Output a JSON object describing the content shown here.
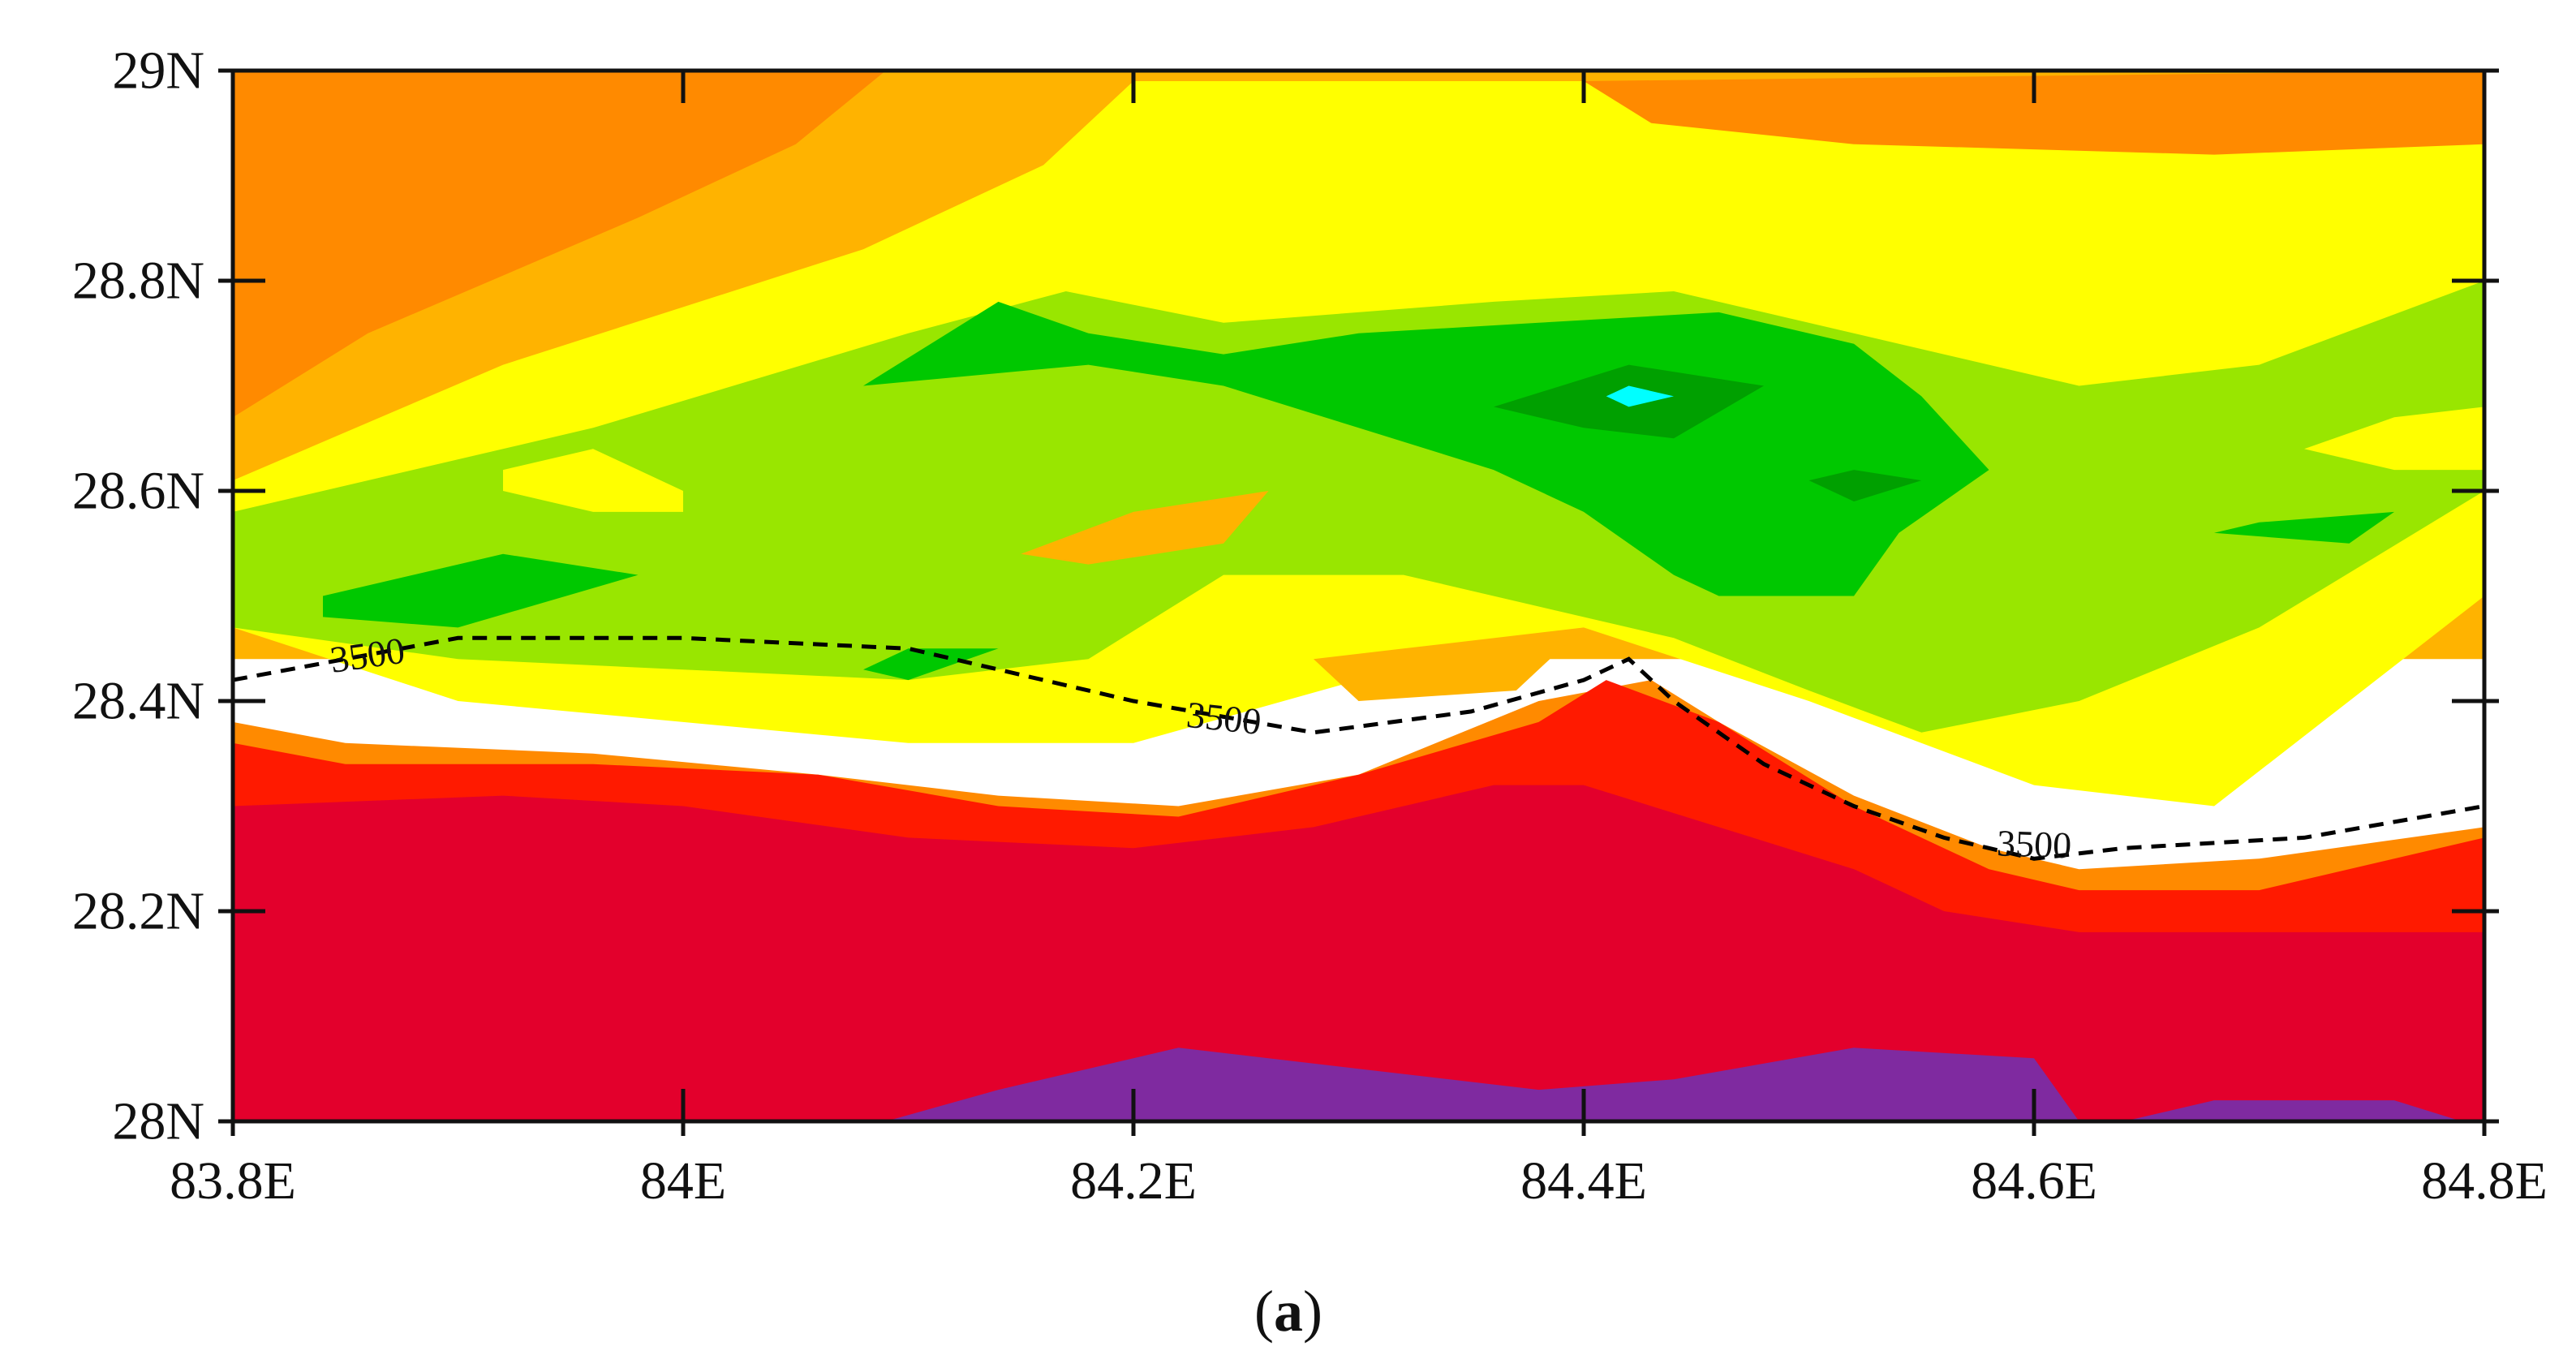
{
  "chart_data": {
    "type": "filled-contour-map",
    "title": "",
    "xlabel": "",
    "ylabel": "",
    "caption": {
      "open": "(",
      "letter": "a",
      "close": ")"
    },
    "xlim": [
      83.8,
      84.8
    ],
    "ylim": [
      28.0,
      29.0
    ],
    "grid": false,
    "x_ticks": [
      {
        "value": 83.8,
        "label": "83.8E"
      },
      {
        "value": 84.0,
        "label": "84E"
      },
      {
        "value": 84.2,
        "label": "84.2E"
      },
      {
        "value": 84.4,
        "label": "84.4E"
      },
      {
        "value": 84.6,
        "label": "84.6E"
      },
      {
        "value": 84.8,
        "label": "84.8E"
      }
    ],
    "y_ticks": [
      {
        "value": 28.0,
        "label": "28N"
      },
      {
        "value": 28.2,
        "label": "28.2N"
      },
      {
        "value": 28.4,
        "label": "28.4N"
      },
      {
        "value": 28.6,
        "label": "28.6N"
      },
      {
        "value": 28.8,
        "label": "28.8N"
      },
      {
        "value": 29.0,
        "label": "29N"
      }
    ],
    "colors": {
      "orange": "#ff8a00",
      "light_orange": "#ffb300",
      "yellow": "#ffff00",
      "light_green": "#99e600",
      "green": "#00c800",
      "dark_green": "#00a000",
      "cyan": "#00ffff",
      "red": "#ff1a00",
      "crimson": "#e3002c",
      "purple": "#7f2aa0"
    },
    "regions": [
      {
        "level": "light_orange",
        "points": [
          [
            83.8,
            28.44
          ],
          [
            83.8,
            29.0
          ],
          [
            84.8,
            29.0
          ],
          [
            84.8,
            28.44
          ]
        ]
      },
      {
        "level": "yellow",
        "points": [
          [
            83.8,
            28.61
          ],
          [
            83.92,
            28.72
          ],
          [
            84.08,
            28.83
          ],
          [
            84.16,
            28.91
          ],
          [
            84.2,
            28.99
          ],
          [
            84.6,
            28.99
          ],
          [
            84.8,
            28.98
          ],
          [
            84.8,
            28.5
          ],
          [
            84.68,
            28.3
          ],
          [
            84.6,
            28.32
          ],
          [
            84.5,
            28.4
          ],
          [
            84.4,
            28.47
          ],
          [
            84.3,
            28.42
          ],
          [
            84.2,
            28.36
          ],
          [
            84.1,
            28.36
          ],
          [
            84.0,
            28.38
          ],
          [
            83.9,
            28.4
          ],
          [
            83.8,
            28.47
          ]
        ]
      },
      {
        "level": "orange",
        "points": [
          [
            83.8,
            28.67
          ],
          [
            83.86,
            28.75
          ],
          [
            83.98,
            28.86
          ],
          [
            84.05,
            28.93
          ],
          [
            84.09,
            29.0
          ],
          [
            83.8,
            29.0
          ]
        ]
      },
      {
        "level": "orange",
        "points": [
          [
            84.4,
            28.99
          ],
          [
            84.43,
            28.95
          ],
          [
            84.52,
            28.93
          ],
          [
            84.68,
            28.92
          ],
          [
            84.8,
            28.93
          ],
          [
            84.8,
            29.0
          ]
        ]
      },
      {
        "level": "light_green",
        "points": [
          [
            83.8,
            28.58
          ],
          [
            83.96,
            28.66
          ],
          [
            84.1,
            28.75
          ],
          [
            84.17,
            28.79
          ],
          [
            84.24,
            28.76
          ],
          [
            84.36,
            28.78
          ],
          [
            84.44,
            28.79
          ],
          [
            84.54,
            28.74
          ],
          [
            84.62,
            28.7
          ],
          [
            84.7,
            28.72
          ],
          [
            84.8,
            28.8
          ],
          [
            84.8,
            28.6
          ],
          [
            84.7,
            28.47
          ],
          [
            84.62,
            28.4
          ],
          [
            84.55,
            28.37
          ],
          [
            84.5,
            28.41
          ],
          [
            84.44,
            28.46
          ],
          [
            84.38,
            28.49
          ],
          [
            84.32,
            28.52
          ],
          [
            84.24,
            28.52
          ],
          [
            84.18,
            28.44
          ],
          [
            84.1,
            28.42
          ],
          [
            84.0,
            28.43
          ],
          [
            83.9,
            28.44
          ],
          [
            83.8,
            28.47
          ]
        ]
      },
      {
        "level": "yellow",
        "points": [
          [
            83.92,
            28.62
          ],
          [
            83.96,
            28.64
          ],
          [
            84.0,
            28.6
          ],
          [
            84.0,
            28.58
          ],
          [
            83.96,
            28.58
          ],
          [
            83.92,
            28.6
          ]
        ]
      },
      {
        "level": "green",
        "points": [
          [
            83.84,
            28.5
          ],
          [
            83.92,
            28.54
          ],
          [
            83.98,
            28.52
          ],
          [
            83.9,
            28.47
          ],
          [
            83.84,
            28.48
          ]
        ]
      },
      {
        "level": "green",
        "points": [
          [
            84.08,
            28.7
          ],
          [
            84.14,
            28.78
          ],
          [
            84.18,
            28.75
          ],
          [
            84.24,
            28.73
          ],
          [
            84.3,
            28.75
          ],
          [
            84.38,
            28.76
          ],
          [
            84.46,
            28.77
          ],
          [
            84.52,
            28.74
          ],
          [
            84.55,
            28.69
          ],
          [
            84.58,
            28.62
          ],
          [
            84.54,
            28.56
          ],
          [
            84.52,
            28.5
          ],
          [
            84.46,
            28.5
          ],
          [
            84.44,
            28.52
          ],
          [
            84.4,
            28.58
          ],
          [
            84.36,
            28.62
          ],
          [
            84.3,
            28.66
          ],
          [
            84.24,
            28.7
          ],
          [
            84.18,
            28.72
          ]
        ]
      },
      {
        "level": "green",
        "points": [
          [
            84.08,
            28.43
          ],
          [
            84.1,
            28.45
          ],
          [
            84.14,
            28.45
          ],
          [
            84.1,
            28.42
          ]
        ]
      },
      {
        "level": "green",
        "points": [
          [
            84.68,
            28.56
          ],
          [
            84.7,
            28.57
          ],
          [
            84.76,
            28.58
          ],
          [
            84.74,
            28.55
          ]
        ]
      },
      {
        "level": "yellow",
        "points": [
          [
            84.72,
            28.64
          ],
          [
            84.76,
            28.67
          ],
          [
            84.8,
            28.68
          ],
          [
            84.8,
            28.62
          ],
          [
            84.76,
            28.62
          ]
        ]
      },
      {
        "level": "dark_green",
        "points": [
          [
            84.36,
            28.68
          ],
          [
            84.42,
            28.72
          ],
          [
            84.48,
            28.7
          ],
          [
            84.44,
            28.65
          ],
          [
            84.4,
            28.66
          ]
        ]
      },
      {
        "level": "dark_green",
        "points": [
          [
            84.5,
            28.61
          ],
          [
            84.52,
            28.62
          ],
          [
            84.55,
            28.61
          ],
          [
            84.52,
            28.59
          ]
        ]
      },
      {
        "level": "cyan",
        "points": [
          [
            84.41,
            28.69
          ],
          [
            84.42,
            28.7
          ],
          [
            84.44,
            28.69
          ],
          [
            84.42,
            28.68
          ]
        ]
      },
      {
        "level": "light_orange",
        "points": [
          [
            84.15,
            28.54
          ],
          [
            84.2,
            28.58
          ],
          [
            84.26,
            28.6
          ],
          [
            84.24,
            28.55
          ],
          [
            84.18,
            28.53
          ]
        ]
      },
      {
        "level": "light_orange",
        "points": [
          [
            84.28,
            28.44
          ],
          [
            84.32,
            28.45
          ],
          [
            84.4,
            28.47
          ],
          [
            84.37,
            28.41
          ],
          [
            84.3,
            28.4
          ]
        ]
      },
      {
        "level": "orange",
        "points": [
          [
            83.8,
            28.38
          ],
          [
            83.85,
            28.36
          ],
          [
            83.96,
            28.35
          ],
          [
            84.06,
            28.33
          ],
          [
            84.14,
            28.31
          ],
          [
            84.22,
            28.3
          ],
          [
            84.3,
            28.33
          ],
          [
            84.38,
            28.4
          ],
          [
            84.43,
            28.42
          ],
          [
            84.46,
            28.38
          ],
          [
            84.52,
            28.31
          ],
          [
            84.58,
            28.26
          ],
          [
            84.62,
            28.24
          ],
          [
            84.7,
            28.25
          ],
          [
            84.8,
            28.28
          ],
          [
            84.8,
            28.0
          ],
          [
            83.8,
            28.0
          ]
        ]
      },
      {
        "level": "red",
        "points": [
          [
            83.8,
            28.36
          ],
          [
            83.85,
            28.34
          ],
          [
            83.96,
            28.34
          ],
          [
            84.06,
            28.33
          ],
          [
            84.14,
            28.3
          ],
          [
            84.22,
            28.29
          ],
          [
            84.3,
            28.33
          ],
          [
            84.38,
            28.38
          ],
          [
            84.41,
            28.42
          ],
          [
            84.46,
            28.38
          ],
          [
            84.52,
            28.3
          ],
          [
            84.58,
            28.24
          ],
          [
            84.62,
            28.22
          ],
          [
            84.7,
            28.22
          ],
          [
            84.8,
            28.27
          ],
          [
            84.8,
            28.0
          ],
          [
            83.8,
            28.0
          ]
        ]
      },
      {
        "level": "crimson",
        "points": [
          [
            83.8,
            28.3
          ],
          [
            83.92,
            28.31
          ],
          [
            84.0,
            28.3
          ],
          [
            84.1,
            28.27
          ],
          [
            84.2,
            28.26
          ],
          [
            84.28,
            28.28
          ],
          [
            84.36,
            28.32
          ],
          [
            84.4,
            28.32
          ],
          [
            84.46,
            28.28
          ],
          [
            84.52,
            28.24
          ],
          [
            84.56,
            28.2
          ],
          [
            84.62,
            28.18
          ],
          [
            84.7,
            28.18
          ],
          [
            84.8,
            28.18
          ],
          [
            84.8,
            28.0
          ],
          [
            83.8,
            28.0
          ]
        ]
      },
      {
        "level": "purple",
        "points": [
          [
            84.09,
            28.0
          ],
          [
            84.14,
            28.03
          ],
          [
            84.22,
            28.07
          ],
          [
            84.3,
            28.05
          ],
          [
            84.38,
            28.03
          ],
          [
            84.44,
            28.04
          ],
          [
            84.52,
            28.07
          ],
          [
            84.6,
            28.06
          ],
          [
            84.62,
            28.0
          ]
        ]
      },
      {
        "level": "purple",
        "points": [
          [
            84.64,
            28.0
          ],
          [
            84.68,
            28.02
          ],
          [
            84.76,
            28.02
          ],
          [
            84.79,
            28.0
          ]
        ]
      }
    ],
    "contour_line": {
      "value": 3500,
      "style": "dashed",
      "points": [
        [
          83.8,
          28.42
        ],
        [
          83.9,
          28.46
        ],
        [
          84.0,
          28.46
        ],
        [
          84.1,
          28.45
        ],
        [
          84.2,
          28.4
        ],
        [
          84.28,
          28.37
        ],
        [
          84.35,
          28.39
        ],
        [
          84.4,
          28.42
        ],
        [
          84.42,
          28.44
        ],
        [
          84.44,
          28.4
        ],
        [
          84.48,
          28.34
        ],
        [
          84.52,
          28.3
        ],
        [
          84.56,
          28.27
        ],
        [
          84.6,
          28.25
        ],
        [
          84.64,
          28.26
        ],
        [
          84.72,
          28.27
        ],
        [
          84.8,
          28.3
        ]
      ]
    },
    "contour_labels": [
      {
        "text": "3500",
        "x": 83.86,
        "y": 28.44,
        "angle": -8
      },
      {
        "text": "3500",
        "x": 84.24,
        "y": 28.38,
        "angle": 6
      },
      {
        "text": "3500",
        "x": 84.6,
        "y": 28.26,
        "angle": 2
      }
    ]
  }
}
